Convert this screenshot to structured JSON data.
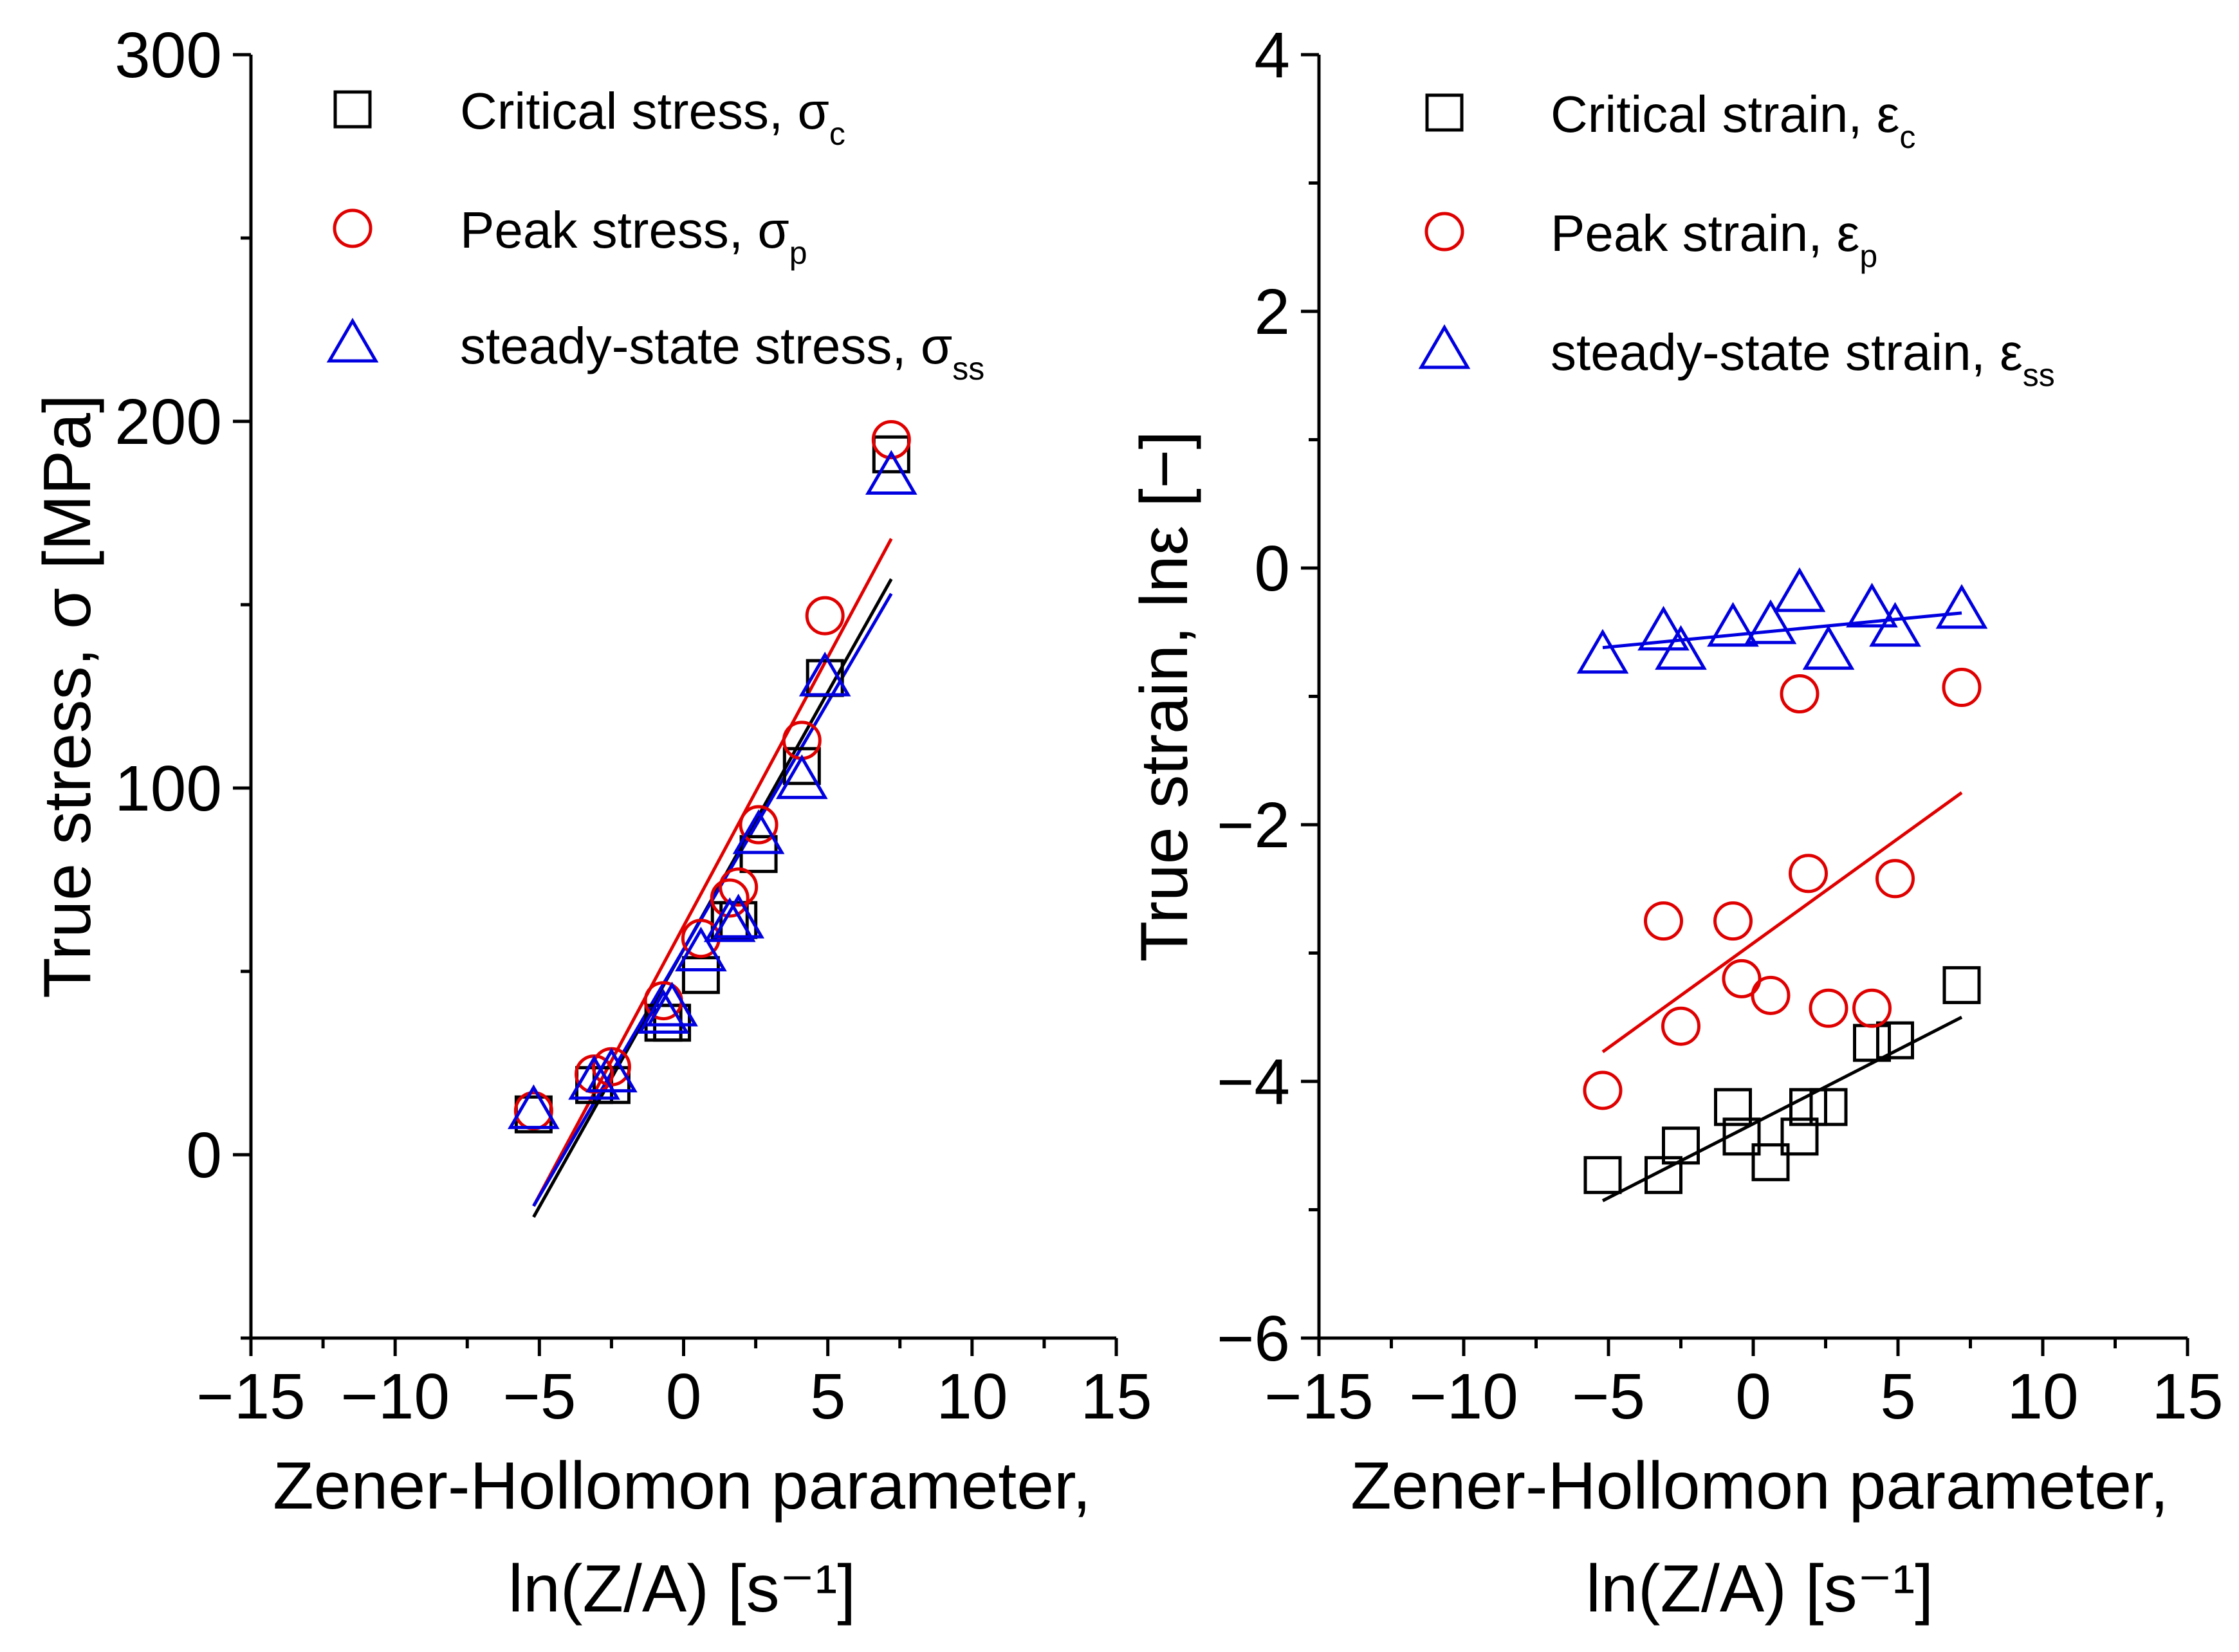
{
  "chart_data": [
    {
      "type": "scatter",
      "xlabel_line1": "Zener-Hollomon parameter,",
      "xlabel_line2": "ln(Z/A) [s⁻¹]",
      "ylabel": "True stress, σ [MPa]",
      "xlim": [
        -15,
        15
      ],
      "ylim": [
        -50,
        300
      ],
      "xticks": [
        "−15",
        "−10",
        "−5",
        "0",
        "5",
        "10",
        "15"
      ],
      "yticks": [
        "0",
        "100",
        "200",
        "300"
      ],
      "grid": false,
      "legend_position": "top-left",
      "series": [
        {
          "name": "Critical stress, σc",
          "marker": "square",
          "color": "#000000",
          "x": [
            -5.2,
            -3.1,
            -2.5,
            -0.7,
            -0.4,
            0.6,
            1.6,
            1.9,
            2.6,
            4.1,
            4.9,
            7.2
          ],
          "y": [
            11,
            19,
            19,
            36,
            36,
            49,
            64,
            64,
            82,
            106,
            130,
            191
          ],
          "fit": {
            "x": [
              -5.2,
              7.2
            ],
            "y": [
              -17,
              157
            ]
          }
        },
        {
          "name": "Peak stress, σp",
          "marker": "circle",
          "color": "#e00000",
          "x": [
            -5.2,
            -3.1,
            -2.5,
            -0.7,
            0.6,
            1.6,
            1.9,
            2.6,
            4.1,
            4.9,
            7.2
          ],
          "y": [
            12,
            22,
            24,
            42,
            59,
            70,
            73,
            90,
            113,
            147,
            195
          ],
          "fit": {
            "x": [
              -5.2,
              7.2
            ],
            "y": [
              -14,
              168
            ]
          }
        },
        {
          "name": "steady-state stress, σss",
          "marker": "triangle",
          "color": "#0000e0",
          "x": [
            -5.2,
            -3.1,
            -2.5,
            -0.7,
            -0.4,
            0.6,
            1.6,
            1.9,
            2.6,
            4.1,
            4.9,
            7.2
          ],
          "y": [
            12,
            20,
            22,
            38,
            40,
            55,
            63,
            64,
            87,
            102,
            130,
            185
          ],
          "fit": {
            "x": [
              -5.2,
              7.2
            ],
            "y": [
              -14,
              153
            ]
          }
        }
      ]
    },
    {
      "type": "scatter",
      "xlabel_line1": "Zener-Hollomon parameter,",
      "xlabel_line2": "ln(Z/A) [s⁻¹]",
      "ylabel": "True strain, lnε [−]",
      "xlim": [
        -15,
        15
      ],
      "ylim": [
        -6,
        4
      ],
      "xticks": [
        "−15",
        "−10",
        "−5",
        "0",
        "5",
        "10",
        "15"
      ],
      "yticks": [
        "−6",
        "−4",
        "−2",
        "0",
        "2",
        "4"
      ],
      "grid": false,
      "legend_position": "top-left",
      "series": [
        {
          "name": "Critical strain, εc",
          "marker": "square",
          "color": "#000000",
          "x": [
            -5.2,
            -3.1,
            -2.5,
            -0.7,
            -0.4,
            0.6,
            1.6,
            1.9,
            2.6,
            4.1,
            4.9,
            7.2
          ],
          "y": [
            -4.73,
            -4.73,
            -4.5,
            -4.2,
            -4.43,
            -4.63,
            -4.43,
            -4.2,
            -4.2,
            -3.7,
            -3.68,
            -3.25
          ],
          "fit": {
            "x": [
              -5.2,
              7.2
            ],
            "y": [
              -4.93,
              -3.5
            ]
          }
        },
        {
          "name": "Peak strain, εp",
          "marker": "circle",
          "color": "#e00000",
          "x": [
            -5.2,
            -3.1,
            -2.5,
            -0.7,
            -0.4,
            0.6,
            1.6,
            1.9,
            2.6,
            4.1,
            4.9,
            7.2
          ],
          "y": [
            -4.07,
            -2.75,
            -3.57,
            -2.75,
            -3.2,
            -3.33,
            -0.98,
            -2.38,
            -3.43,
            -3.43,
            -2.42,
            -0.93
          ],
          "fit": {
            "x": [
              -5.2,
              7.2
            ],
            "y": [
              -3.77,
              -1.75
            ]
          }
        },
        {
          "name": "steady-state strain, εss",
          "marker": "triangle",
          "color": "#0000e0",
          "x": [
            -5.2,
            -3.1,
            -2.5,
            -0.7,
            0.6,
            1.6,
            2.6,
            4.1,
            4.9,
            7.2
          ],
          "y": [
            -0.68,
            -0.5,
            -0.65,
            -0.47,
            -0.45,
            -0.2,
            -0.65,
            -0.32,
            -0.47,
            -0.33
          ],
          "fit": {
            "x": [
              -5.2,
              7.2
            ],
            "y": [
              -0.62,
              -0.35
            ]
          }
        }
      ]
    }
  ],
  "legend_labels": [
    [
      {
        "main": "Critical stress, σ",
        "sub": "c"
      },
      {
        "main": "Peak stress, σ",
        "sub": "p"
      },
      {
        "main": "steady-state stress, σ",
        "sub": "ss"
      }
    ],
    [
      {
        "main": "Critical strain, ε",
        "sub": "c"
      },
      {
        "main": "Peak strain, ε",
        "sub": "p"
      },
      {
        "main": "steady-state strain, ε",
        "sub": "ss"
      }
    ]
  ]
}
